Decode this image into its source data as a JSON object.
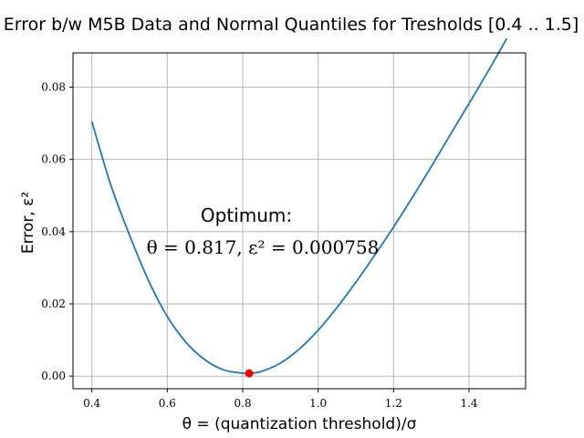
{
  "chart_data": {
    "type": "line",
    "title": "Error b/w M5B Data and Normal Quantiles for Tresholds [0.4 .. 1.5]",
    "xlabel": "θ = (quantization threshold)/σ",
    "ylabel": "Error, ε²",
    "xlim": [
      0.35,
      1.55
    ],
    "ylim": [
      -0.0035,
      0.0895
    ],
    "grid": true,
    "xticks": [
      0.4,
      0.6,
      0.8,
      1.0,
      1.2,
      1.4
    ],
    "xtick_labels": [
      "0.4",
      "0.6",
      "0.8",
      "1.0",
      "1.2",
      "1.4"
    ],
    "yticks": [
      0.0,
      0.02,
      0.04,
      0.06,
      0.08
    ],
    "ytick_labels": [
      "0.00",
      "0.02",
      "0.04",
      "0.06",
      "0.08"
    ],
    "series": [
      {
        "color": "#1f77b4",
        "x": [
          0.4,
          0.45,
          0.5,
          0.55,
          0.6,
          0.65,
          0.7,
          0.75,
          0.8,
          0.817,
          0.85,
          0.9,
          0.95,
          1.0,
          1.05,
          1.1,
          1.15,
          1.2,
          1.25,
          1.3,
          1.35,
          1.4,
          1.45,
          1.5
        ],
        "y": [
          0.0705,
          0.053,
          0.039,
          0.0265,
          0.0165,
          0.0093,
          0.0045,
          0.0017,
          0.0008,
          0.000758,
          0.0013,
          0.0036,
          0.0075,
          0.0127,
          0.019,
          0.026,
          0.0335,
          0.0413,
          0.0495,
          0.058,
          0.0668,
          0.0755,
          0.0843,
          0.0935
        ]
      }
    ],
    "optimum": {
      "x": 0.817,
      "y": 0.000758,
      "color": "#ff0000"
    },
    "annotation": {
      "line1": "Optimum:",
      "line2": "θ = 0.817, ε² = 0.000758"
    }
  }
}
